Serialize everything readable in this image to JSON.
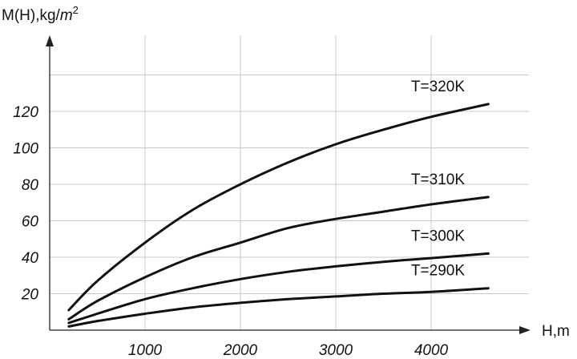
{
  "chart_data": {
    "type": "line",
    "title": "",
    "ylabel": "M(H),kg/",
    "ylabel_unit": "m",
    "ylabel_exp": "2",
    "xlabel": "H,m",
    "xlim": [
      0,
      4900
    ],
    "ylim": [
      0,
      140
    ],
    "x_ticks": [
      "1000",
      "2000",
      "3000",
      "4000"
    ],
    "x_tick_values": [
      1000,
      2000,
      3000,
      4000
    ],
    "y_ticks": [
      "20",
      "40",
      "60",
      "80",
      "100",
      "120"
    ],
    "y_tick_values": [
      20,
      40,
      60,
      80,
      100,
      120
    ],
    "grid": true,
    "x": [
      200,
      500,
      1000,
      1500,
      2000,
      2500,
      3000,
      3500,
      4000,
      4600
    ],
    "series": [
      {
        "name": "T=320K",
        "values": [
          11,
          27,
          48,
          66,
          80,
          92,
          102,
          110,
          117,
          124
        ]
      },
      {
        "name": "T=310K",
        "values": [
          6,
          16,
          29,
          40,
          48,
          56,
          61,
          65,
          69,
          73
        ]
      },
      {
        "name": "T=300K",
        "values": [
          4,
          9,
          17,
          23,
          28,
          32,
          35,
          37.5,
          39.5,
          42
        ]
      },
      {
        "name": "T=290K",
        "values": [
          2,
          5,
          9,
          12.5,
          15,
          17,
          18.5,
          20,
          21,
          23
        ]
      }
    ]
  }
}
